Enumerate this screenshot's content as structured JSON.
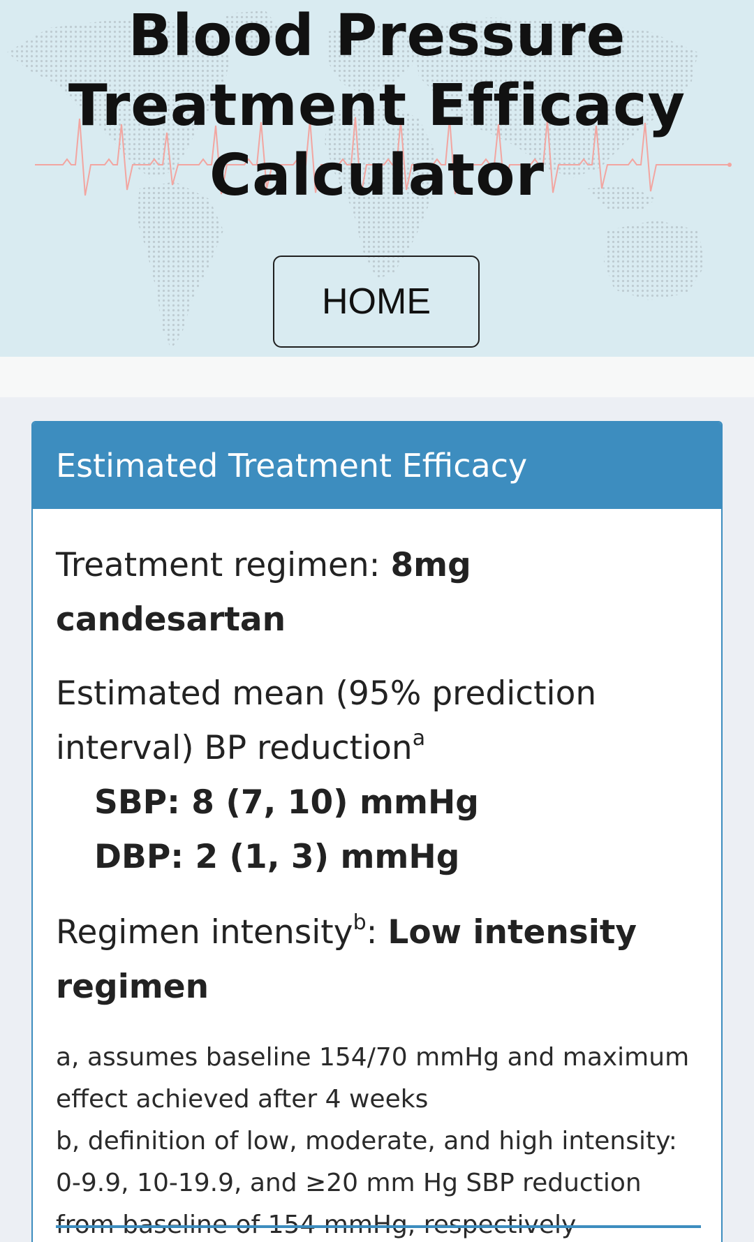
{
  "header": {
    "title_line1": "Blood Pressure",
    "title_line2": "Treatment Efficacy",
    "title_line3": "Calculator",
    "home_label": "HOME"
  },
  "card": {
    "heading": "Estimated Treatment Efficacy",
    "regimen_label": "Treatment regimen: ",
    "regimen_value": "8mg candesartan",
    "estimate_label": "Estimated mean (95% prediction interval) BP reduction",
    "estimate_sup": "a",
    "sbp": "SBP: 8 (7, 10) mmHg",
    "dbp": "DBP: 2 (1, 3) mmHg",
    "intensity_label": "Regimen intensity",
    "intensity_sup": "b",
    "intensity_colon": ": ",
    "intensity_value": "Low intensity regimen",
    "note_a": "a, assumes baseline 154/70 mmHg and maximum effect achieved after 4 weeks",
    "note_b": "b, definition of low, moderate, and high intensity: 0-9.9, 10-19.9, and ≥20 mm Hg SBP reduction from baseline of 154 mmHg, respectively"
  },
  "colors": {
    "header_bg": "#d9ebf1",
    "accent": "#3d8dbf",
    "ecg_line": "#f2a5a0",
    "map_dots": "#b9c6cc"
  }
}
